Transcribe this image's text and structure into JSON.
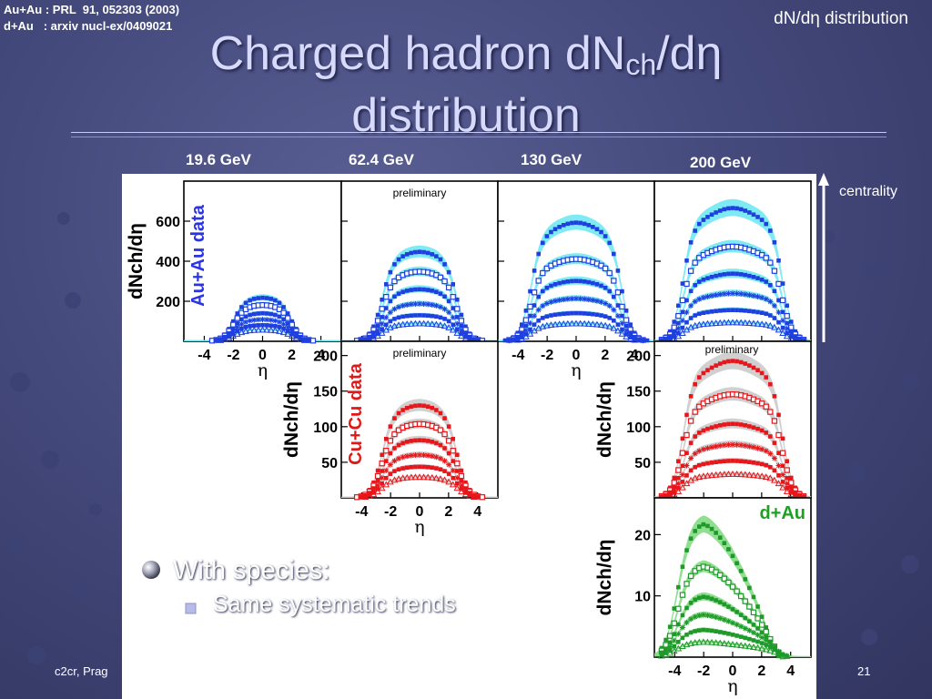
{
  "slide": {
    "ref_auau": "Au+Au : PRL  91, 052303 (2003)",
    "ref_dau": "d+Au   : arxiv nucl-ex/0409021",
    "corner_label": "dN/dη distribution",
    "title_line1_main": "Charged hadron dN",
    "title_line1_sub": "ch",
    "title_line1_end": "/dη",
    "title_line2": "distribution",
    "energies": [
      "19.6 GeV",
      "62.4 GeV",
      "130 GeV",
      "200 GeV"
    ],
    "centrality_label": "centrality",
    "bullet": "With species:",
    "subbullet": "Same systematic trends",
    "footer_left": "c2cr, Prag",
    "page_number": "21"
  },
  "colors": {
    "auau_band": "#66e6f2",
    "auau_points": "#1f3fe0",
    "cucu_band": "#c8c8c8",
    "cucu_points": "#e8161a",
    "dau_band": "#7cd97c",
    "dau_points": "#1f9a2a",
    "label_auau": "#2a34e6",
    "label_cucu": "#e01818",
    "label_dau": "#1fa024"
  },
  "icons": {
    "bullet": "sphere-bullet-icon",
    "subbullet": "square-bullet-icon",
    "arrow": "up-arrow-icon"
  },
  "chart_data": [
    {
      "type": "scatter",
      "system": "auau",
      "energy": "19.6 GeV",
      "series_label": "Au+Au data",
      "xlabel": "η",
      "ylabel": "dNch/dη",
      "xlim": [
        -5.4,
        5.4
      ],
      "ylim": [
        0,
        800
      ],
      "yticks": [
        200,
        400,
        600
      ],
      "xticks": [
        -4,
        -2,
        0,
        2,
        4
      ],
      "plateau": [
        210,
        175,
        135,
        105,
        78,
        55
      ],
      "width": 2.0,
      "edge": 1.4
    },
    {
      "type": "scatter",
      "system": "auau",
      "energy": "62.4 GeV",
      "annotation": "preliminary",
      "xlabel": "",
      "ylabel": "",
      "xlim": [
        -5.4,
        5.4
      ],
      "ylim": [
        0,
        800
      ],
      "yticks": [
        200,
        400,
        600
      ],
      "xticks": [
        -4,
        -2,
        0,
        2,
        4
      ],
      "plateau": [
        430,
        335,
        250,
        180,
        125,
        85
      ],
      "width": 2.6,
      "edge": 1.4
    },
    {
      "type": "scatter",
      "system": "auau",
      "energy": "130 GeV",
      "xlabel": "η",
      "ylabel": "",
      "xlim": [
        -5.4,
        5.4
      ],
      "ylim": [
        0,
        800
      ],
      "yticks": [
        200,
        400,
        600
      ],
      "xticks": [
        -4,
        -2,
        0,
        2,
        4
      ],
      "plateau": [
        570,
        395,
        290,
        205,
        135,
        85
      ],
      "width": 3.1,
      "edge": 1.3
    },
    {
      "type": "scatter",
      "system": "auau",
      "energy": "200 GeV",
      "xlabel": "",
      "ylabel": "",
      "xlim": [
        -5.4,
        5.4
      ],
      "ylim": [
        0,
        800
      ],
      "yticks": [
        200,
        400,
        600
      ],
      "xticks": [
        -4,
        -2,
        0,
        2,
        4
      ],
      "plateau": [
        640,
        455,
        325,
        230,
        150,
        90
      ],
      "width": 3.4,
      "edge": 1.3
    },
    {
      "type": "scatter",
      "system": "cucu",
      "energy": "62.4 GeV",
      "series_label": "Cu+Cu data",
      "annotation": "preliminary",
      "xlabel": "η",
      "ylabel": "dNch/dη",
      "xlim": [
        -5.4,
        5.4
      ],
      "ylim": [
        0,
        220
      ],
      "yticks": [
        50,
        100,
        150,
        200
      ],
      "xticks": [
        -4,
        -2,
        0,
        2,
        4
      ],
      "plateau": [
        125,
        100,
        78,
        58,
        42,
        28
      ],
      "width": 2.6,
      "edge": 1.4
    },
    {
      "type": "scatter",
      "system": "cucu",
      "energy": "200 GeV",
      "annotation": "preliminary",
      "xlabel": "",
      "ylabel": "dNch/dη",
      "xlim": [
        -5.4,
        5.4
      ],
      "ylim": [
        0,
        220
      ],
      "yticks": [
        50,
        100,
        150,
        200
      ],
      "xticks": [
        -4,
        -2,
        0,
        2,
        4
      ],
      "plateau": [
        185,
        140,
        100,
        72,
        50,
        32
      ],
      "width": 3.4,
      "edge": 1.3
    },
    {
      "type": "scatter",
      "system": "dau",
      "energy": "200 GeV",
      "series_label": "d+Au",
      "xlabel": "η",
      "ylabel": "dNch/dη",
      "xlim": [
        -5.4,
        5.4
      ],
      "ylim": [
        0,
        26
      ],
      "yticks": [
        10,
        20
      ],
      "xticks": [
        -4,
        -2,
        0,
        2,
        4
      ],
      "plateau": [
        22,
        15,
        10,
        7,
        4.5,
        2.5
      ],
      "peak": -2.0,
      "slope": 0.22
    }
  ]
}
